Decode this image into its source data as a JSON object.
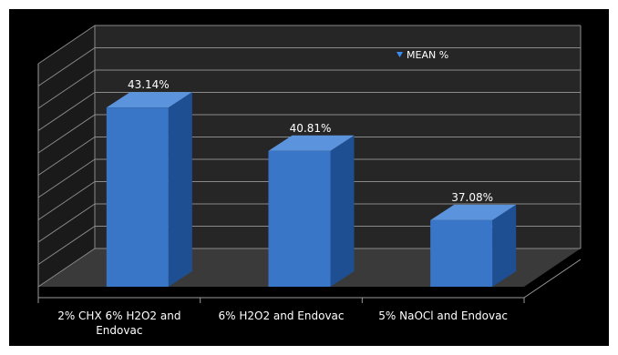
{
  "chart_data": {
    "type": "bar",
    "categories": [
      "2% CHX 6% H2O2 and\nEndovac",
      "6% H2O2 and Endovac",
      "5% NaOCl and Endovac"
    ],
    "series": [
      {
        "name": "MEAN %",
        "values": [
          43.14,
          40.81,
          37.08
        ],
        "color": "#3a76c8"
      }
    ],
    "data_labels": [
      "43.14%",
      "40.81%",
      "37.08%"
    ],
    "ylim": [
      33.5,
      45.5
    ],
    "grid": true,
    "legend_position": "top-right",
    "three_d": true,
    "background_color": "#000000",
    "floor_color": "#3a3a3a",
    "wall_color": "#262626"
  }
}
